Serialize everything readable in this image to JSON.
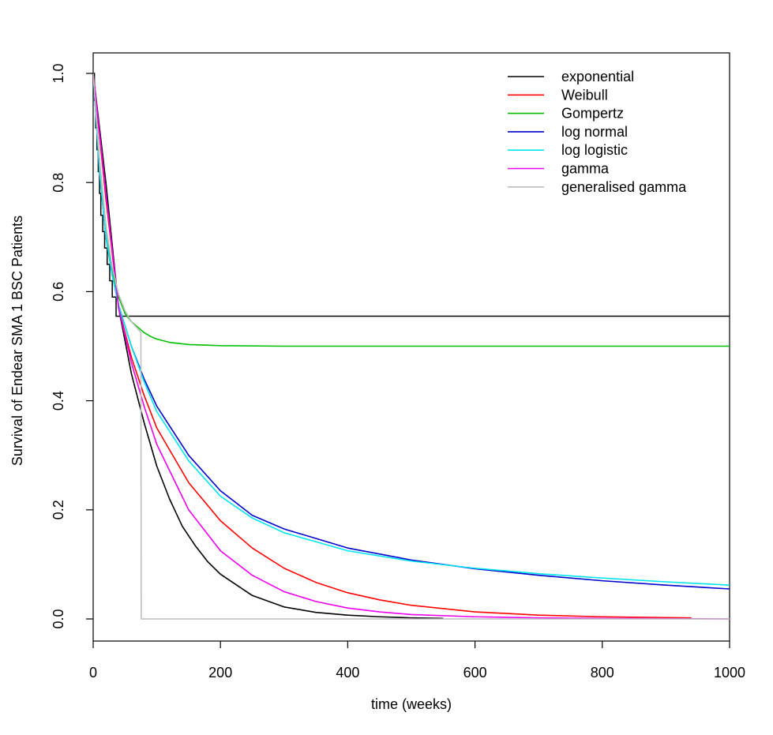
{
  "chart_data": {
    "type": "line",
    "title": "",
    "xlabel": "time (weeks)",
    "ylabel": "Survival of Endear SMA 1 BSC Patients",
    "xlim": [
      0,
      1000
    ],
    "ylim": [
      0,
      1.0
    ],
    "x_ticks": [
      "0",
      "200",
      "400",
      "600",
      "800",
      "1000"
    ],
    "y_ticks": [
      "0.0",
      "0.2",
      "0.4",
      "0.6",
      "0.8",
      "1.0"
    ],
    "grid": false,
    "legend_position": "top-right",
    "km_steps": {
      "name": "",
      "color": "#000000",
      "x": [
        0,
        2,
        4,
        6,
        8,
        10,
        12,
        15,
        18,
        22,
        26,
        30,
        36,
        42,
        48,
        54,
        1000
      ],
      "y": [
        1.0,
        0.95,
        0.9,
        0.86,
        0.82,
        0.78,
        0.74,
        0.71,
        0.68,
        0.65,
        0.62,
        0.59,
        0.555,
        0.555,
        0.555,
        0.555,
        0.555
      ]
    },
    "series": [
      {
        "name": "exponential",
        "color": "#000000",
        "x": [
          0,
          20,
          40,
          60,
          80,
          100,
          120,
          140,
          160,
          180,
          200,
          250,
          300,
          350,
          400,
          450,
          500,
          550
        ],
        "y": [
          1.0,
          0.8,
          0.57,
          0.45,
          0.36,
          0.28,
          0.22,
          0.17,
          0.135,
          0.105,
          0.082,
          0.043,
          0.022,
          0.012,
          0.007,
          0.004,
          0.002,
          0.001
        ]
      },
      {
        "name": "Weibull",
        "color": "#ff0000",
        "x": [
          0,
          20,
          40,
          60,
          80,
          100,
          150,
          200,
          250,
          300,
          350,
          400,
          450,
          500,
          600,
          700,
          800,
          940
        ],
        "y": [
          1.0,
          0.77,
          0.57,
          0.48,
          0.41,
          0.35,
          0.25,
          0.18,
          0.13,
          0.093,
          0.067,
          0.048,
          0.035,
          0.025,
          0.013,
          0.007,
          0.004,
          0.002
        ]
      },
      {
        "name": "Gompertz",
        "color": "#00c000",
        "x": [
          0,
          10,
          20,
          30,
          40,
          50,
          60,
          70,
          80,
          90,
          100,
          120,
          150,
          200,
          300,
          500,
          1000
        ],
        "y": [
          1.0,
          0.84,
          0.72,
          0.64,
          0.59,
          0.56,
          0.545,
          0.535,
          0.525,
          0.518,
          0.513,
          0.507,
          0.503,
          0.501,
          0.5,
          0.5,
          0.5
        ]
      },
      {
        "name": "log normal",
        "color": "#0000cc",
        "x": [
          0,
          10,
          20,
          30,
          40,
          60,
          80,
          100,
          150,
          200,
          250,
          300,
          400,
          500,
          600,
          700,
          800,
          900,
          1000
        ],
        "y": [
          1.0,
          0.82,
          0.7,
          0.63,
          0.575,
          0.5,
          0.44,
          0.39,
          0.3,
          0.235,
          0.19,
          0.165,
          0.13,
          0.108,
          0.092,
          0.08,
          0.07,
          0.062,
          0.055
        ]
      },
      {
        "name": "log logistic",
        "color": "#00e5ee",
        "x": [
          0,
          10,
          20,
          30,
          40,
          60,
          80,
          100,
          150,
          200,
          250,
          300,
          400,
          500,
          600,
          700,
          800,
          900,
          1000
        ],
        "y": [
          1.0,
          0.82,
          0.7,
          0.63,
          0.575,
          0.5,
          0.435,
          0.38,
          0.29,
          0.225,
          0.185,
          0.158,
          0.125,
          0.106,
          0.093,
          0.083,
          0.075,
          0.068,
          0.062
        ]
      },
      {
        "name": "gamma",
        "color": "#ee00ee",
        "x": [
          0,
          20,
          40,
          60,
          80,
          100,
          150,
          200,
          250,
          300,
          350,
          400,
          450,
          500,
          600,
          700,
          800,
          1000
        ],
        "y": [
          1.0,
          0.78,
          0.57,
          0.47,
          0.39,
          0.32,
          0.2,
          0.125,
          0.08,
          0.05,
          0.032,
          0.02,
          0.013,
          0.008,
          0.004,
          0.002,
          0.001,
          0.0
        ]
      },
      {
        "name": "generalised gamma",
        "color": "#bebebe",
        "x": [
          0,
          10,
          20,
          30,
          40,
          50,
          60,
          70,
          75,
          75.5,
          1000
        ],
        "y": [
          1.0,
          0.84,
          0.72,
          0.645,
          0.595,
          0.565,
          0.545,
          0.532,
          0.525,
          0.0,
          0.0
        ]
      }
    ]
  }
}
